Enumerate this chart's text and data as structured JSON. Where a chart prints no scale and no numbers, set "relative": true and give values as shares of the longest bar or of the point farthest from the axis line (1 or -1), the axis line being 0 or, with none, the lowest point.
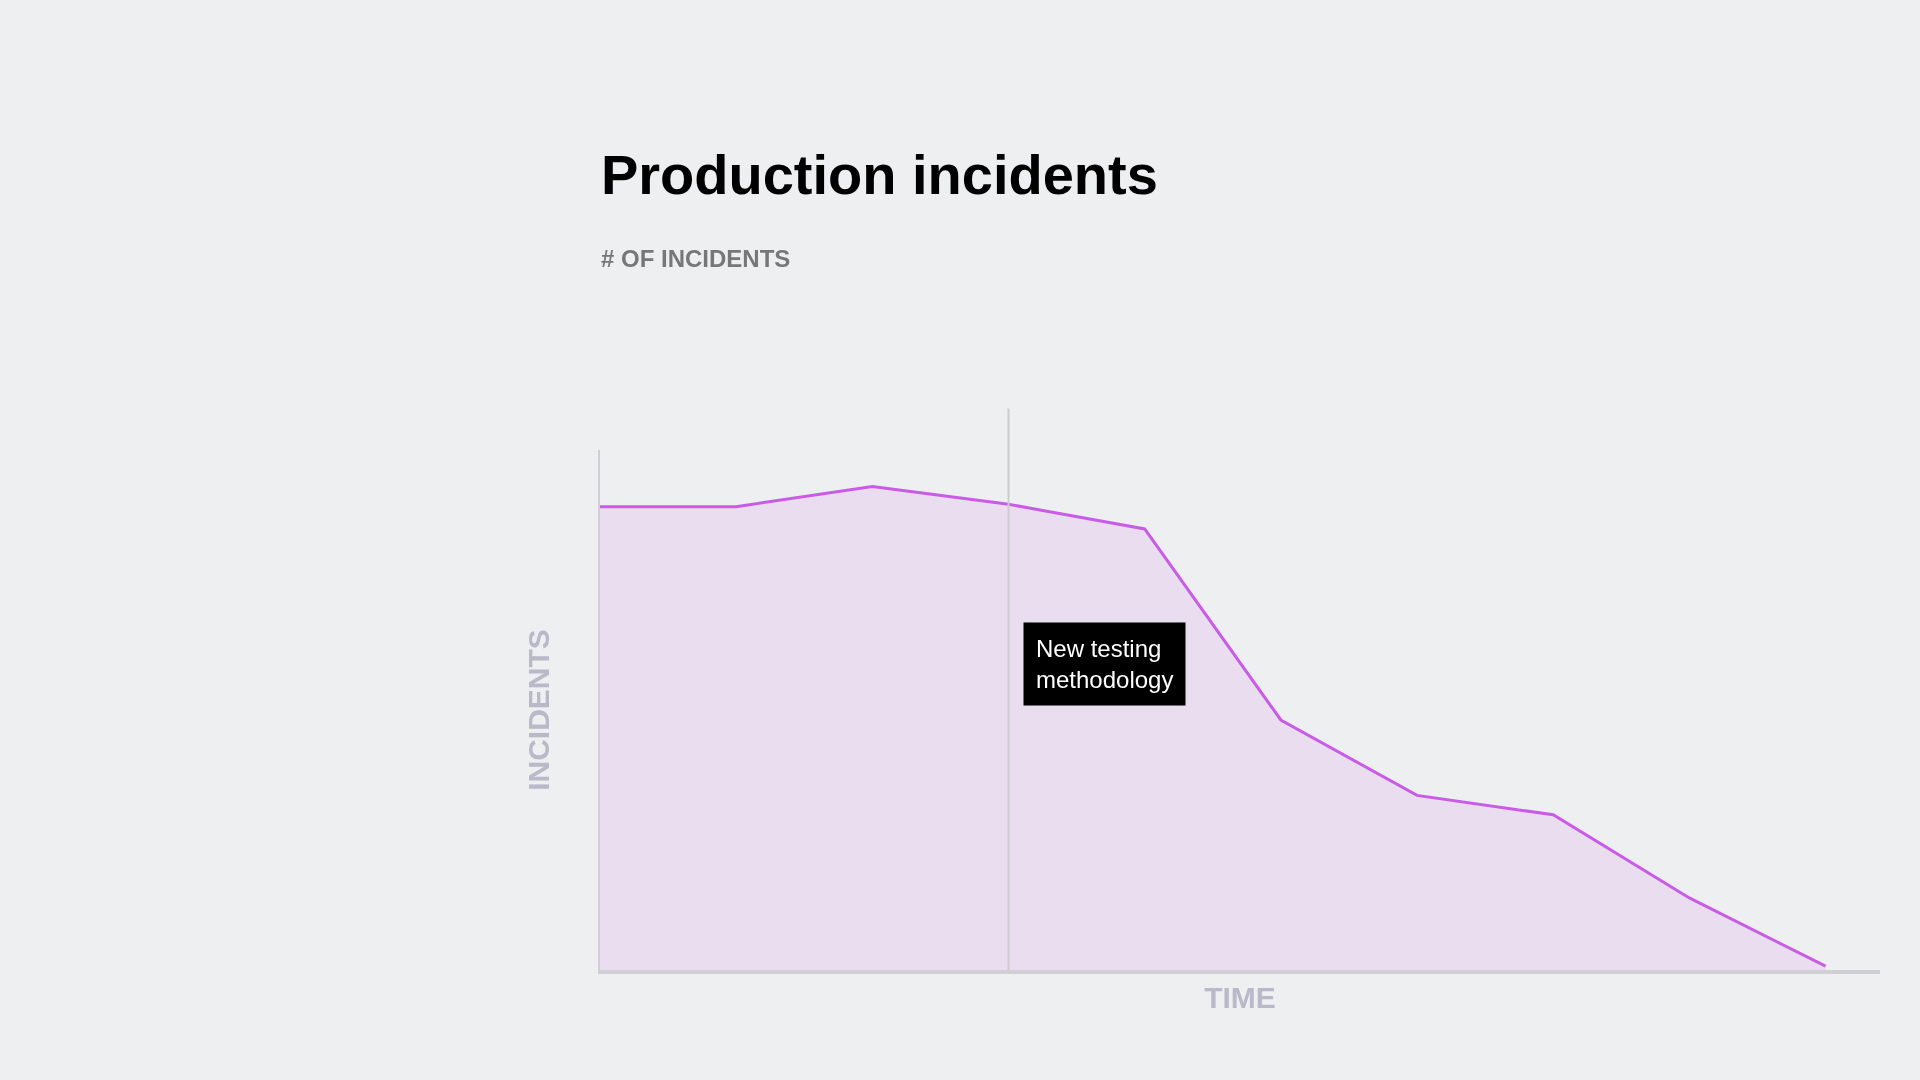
{
  "chart_data": {
    "type": "area",
    "title": "Production incidents",
    "subtitle": "# OF INCIDENTS",
    "xlabel": "TIME",
    "ylabel": "INCIDENTS",
    "relative": true,
    "categories": [
      null,
      null,
      null,
      null,
      null,
      null,
      null,
      null,
      null,
      null
    ],
    "series": [
      {
        "color": "#c95ce6",
        "values": [
          0.958,
          0.958,
          1.0,
          0.963,
          0.912,
          0.517,
          0.361,
          0.321,
          0.149,
          0.008
        ]
      }
    ],
    "annotations": [
      "New testing methodology"
    ],
    "tick_labels": false,
    "grid": false
  }
}
